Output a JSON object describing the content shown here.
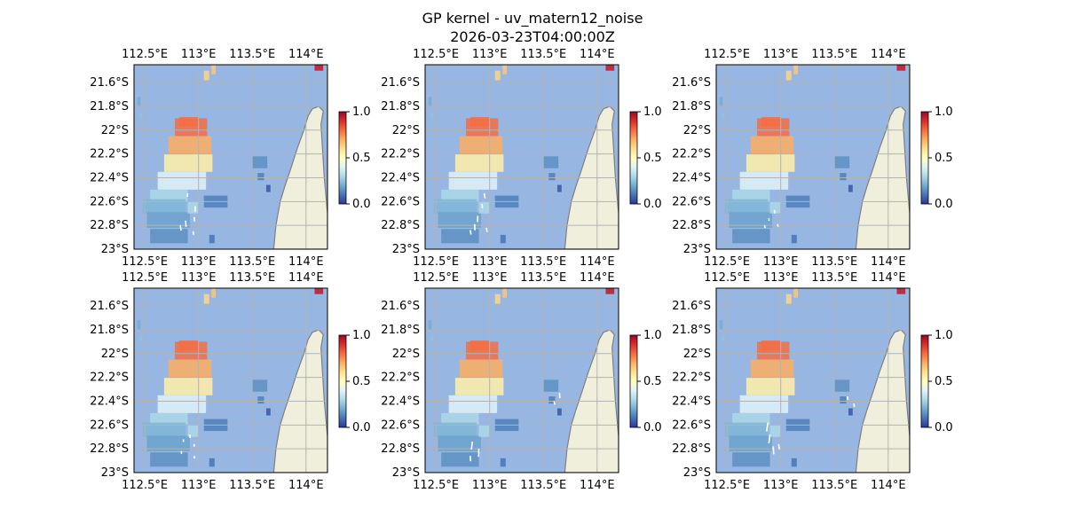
{
  "figure": {
    "title": "GP kernel - uv_matern12_noise",
    "subtitle": "2026-03-23T04:00:00Z"
  },
  "colors": {
    "ocean": "#97b6e1",
    "land": "#efefdb",
    "coast": "#7f7f7f",
    "grid": "#b3b3b3",
    "arrow": "#ffffff"
  },
  "chart_data": {
    "type": "heatmap",
    "panel_count": 6,
    "layout": "2 rows x 3 columns",
    "x_ticks": [
      "112.5°E",
      "113°E",
      "113.5°E",
      "114°E"
    ],
    "x_tick_values": [
      112.5,
      113.0,
      113.5,
      114.0
    ],
    "y_ticks": [
      "21.6°S",
      "21.8°S",
      "22°S",
      "22.2°S",
      "22.4°S",
      "22.6°S",
      "22.8°S",
      "23°S"
    ],
    "y_tick_values": [
      -21.6,
      -21.8,
      -22.0,
      -22.2,
      -22.4,
      -22.6,
      -22.8,
      -23.0
    ],
    "xlim": [
      112.4,
      114.2
    ],
    "ylim": [
      -23.0,
      -21.45
    ],
    "colorbar": {
      "range": [
        0.0,
        1.0
      ],
      "ticks": [
        "0.0",
        "0.5",
        "1.0"
      ],
      "tick_values": [
        0.0,
        0.5,
        1.0
      ],
      "colormap": "RdYlBu_r"
    },
    "panels": [
      {
        "id": 1,
        "arrows": [
          [
            112.9,
            -22.53,
            0.6,
            0.4
          ],
          [
            112.97,
            -22.64,
            0.5,
            0.6
          ],
          [
            112.96,
            -22.73,
            0.4,
            0.5
          ],
          [
            112.88,
            -22.76,
            0.4,
            0.7
          ],
          [
            112.83,
            -22.8,
            0.3,
            0.6
          ],
          [
            112.95,
            -22.85,
            0.3,
            0.4
          ]
        ]
      },
      {
        "id": 2,
        "arrows": [
          [
            112.95,
            -22.53,
            0.3,
            0.6
          ],
          [
            112.93,
            -22.62,
            0.4,
            0.5
          ],
          [
            112.89,
            -22.72,
            0.5,
            0.7
          ],
          [
            112.86,
            -22.79,
            0.4,
            0.7
          ],
          [
            112.82,
            -22.84,
            0.3,
            0.5
          ],
          [
            112.97,
            -22.82,
            0.3,
            0.5
          ]
        ]
      },
      {
        "id": 3,
        "arrows": [
          [
            112.94,
            -22.67,
            0.3,
            0.4
          ],
          [
            112.89,
            -22.74,
            0.4,
            0.3
          ],
          [
            112.85,
            -22.8,
            0.3,
            0.3
          ],
          [
            112.97,
            -22.79,
            0.2,
            0.3
          ]
        ]
      },
      {
        "id": 4,
        "arrows": [
          [
            112.92,
            -22.68,
            0.4,
            0.4
          ],
          [
            112.86,
            -22.72,
            0.5,
            0.3
          ],
          [
            112.96,
            -22.76,
            0.5,
            0.3
          ],
          [
            112.84,
            -22.82,
            0.4,
            0.3
          ],
          [
            112.96,
            -22.86,
            0.3,
            0.3
          ]
        ]
      },
      {
        "id": 5,
        "arrows": [
          [
            112.84,
            -22.74,
            0.6,
            0.9
          ],
          [
            112.9,
            -22.8,
            0.5,
            0.9
          ],
          [
            112.82,
            -22.86,
            0.4,
            0.6
          ],
          [
            113.65,
            -22.33,
            0.4,
            0.6
          ],
          [
            113.6,
            -22.4,
            0.3,
            0.4
          ]
        ]
      },
      {
        "id": 6,
        "arrows": [
          [
            112.88,
            -22.58,
            0.6,
            1.0
          ],
          [
            112.9,
            -22.68,
            0.6,
            1.0
          ],
          [
            112.93,
            -22.78,
            0.4,
            0.9
          ],
          [
            112.98,
            -22.76,
            0.3,
            0.6
          ],
          [
            113.62,
            -22.36,
            0.3,
            0.4
          ],
          [
            113.68,
            -22.42,
            0.3,
            0.4
          ]
        ]
      }
    ]
  }
}
